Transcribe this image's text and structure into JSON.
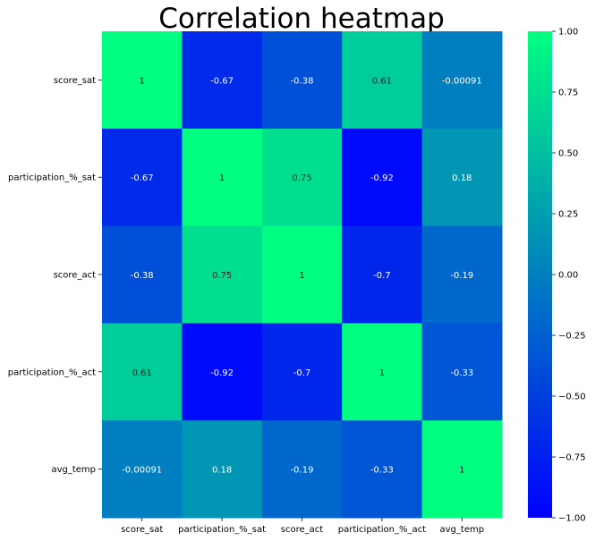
{
  "chart_data": {
    "type": "heatmap",
    "title": "Correlation heatmap",
    "xlabel": "",
    "ylabel": "",
    "rows": [
      "score_sat",
      "participation_%_sat",
      "score_act",
      "participation_%_act",
      "avg_temp"
    ],
    "columns": [
      "score_sat",
      "participation_%_sat",
      "score_act",
      "participation_%_act",
      "avg_temp"
    ],
    "values": [
      [
        1,
        -0.67,
        -0.38,
        0.61,
        -0.00091
      ],
      [
        -0.67,
        1,
        0.75,
        -0.92,
        0.18
      ],
      [
        -0.38,
        0.75,
        1,
        -0.7,
        -0.19
      ],
      [
        0.61,
        -0.92,
        -0.7,
        1,
        -0.33
      ],
      [
        -0.00091,
        0.18,
        -0.19,
        -0.33,
        1
      ]
    ],
    "value_labels": [
      [
        "1",
        "-0.67",
        "-0.38",
        "0.61",
        "-0.00091"
      ],
      [
        "-0.67",
        "1",
        "0.75",
        "-0.92",
        "0.18"
      ],
      [
        "-0.38",
        "0.75",
        "1",
        "-0.7",
        "-0.19"
      ],
      [
        "0.61",
        "-0.92",
        "-0.7",
        "1",
        "-0.33"
      ],
      [
        "-0.00091",
        "0.18",
        "-0.19",
        "-0.33",
        "1"
      ]
    ],
    "colormap": "winter",
    "color_low": "#0000ff",
    "color_high": "#00ff80",
    "vmin": -1,
    "vmax": 1,
    "colorbar_ticks": [
      "1.00",
      "0.75",
      "0.50",
      "0.25",
      "0.00",
      "−0.25",
      "−0.50",
      "−0.75",
      "−1.00"
    ],
    "colorbar_tick_values": [
      1.0,
      0.75,
      0.5,
      0.25,
      0.0,
      -0.25,
      -0.5,
      -0.75,
      -1.0
    ],
    "grid": false,
    "legend": "colorbar-right"
  }
}
